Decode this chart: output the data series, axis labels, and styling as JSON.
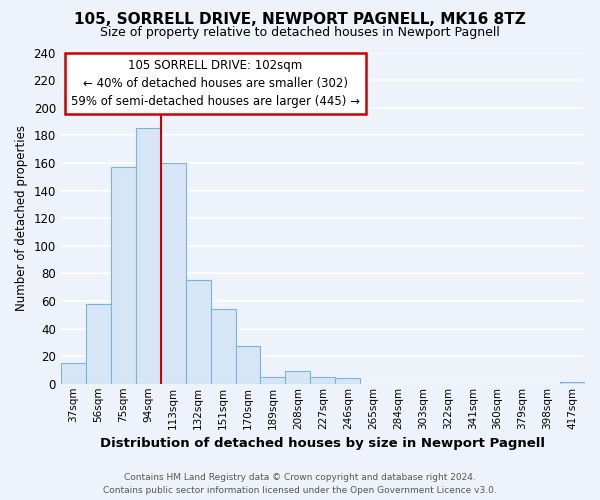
{
  "title": "105, SORRELL DRIVE, NEWPORT PAGNELL, MK16 8TZ",
  "subtitle": "Size of property relative to detached houses in Newport Pagnell",
  "xlabel": "Distribution of detached houses by size in Newport Pagnell",
  "ylabel": "Number of detached properties",
  "bar_labels": [
    "37sqm",
    "56sqm",
    "75sqm",
    "94sqm",
    "113sqm",
    "132sqm",
    "151sqm",
    "170sqm",
    "189sqm",
    "208sqm",
    "227sqm",
    "246sqm",
    "265sqm",
    "284sqm",
    "303sqm",
    "322sqm",
    "341sqm",
    "360sqm",
    "379sqm",
    "398sqm",
    "417sqm"
  ],
  "bar_values": [
    15,
    58,
    157,
    185,
    160,
    75,
    54,
    27,
    5,
    9,
    5,
    4,
    0,
    0,
    0,
    0,
    0,
    0,
    0,
    0,
    1
  ],
  "bar_color": "#d6e6f7",
  "bar_edge_color": "#7ab4d8",
  "vline_x": 3.5,
  "vline_color": "#cc0000",
  "annotation_title": "105 SORRELL DRIVE: 102sqm",
  "annotation_line1": "← 40% of detached houses are smaller (302)",
  "annotation_line2": "59% of semi-detached houses are larger (445) →",
  "annotation_box_facecolor": "#ffffff",
  "annotation_box_edgecolor": "#cc0000",
  "ylim": [
    0,
    240
  ],
  "yticks": [
    0,
    20,
    40,
    60,
    80,
    100,
    120,
    140,
    160,
    180,
    200,
    220,
    240
  ],
  "footer_line1": "Contains HM Land Registry data © Crown copyright and database right 2024.",
  "footer_line2": "Contains public sector information licensed under the Open Government Licence v3.0.",
  "bg_color": "#eef2fa",
  "grid_color": "#ffffff"
}
